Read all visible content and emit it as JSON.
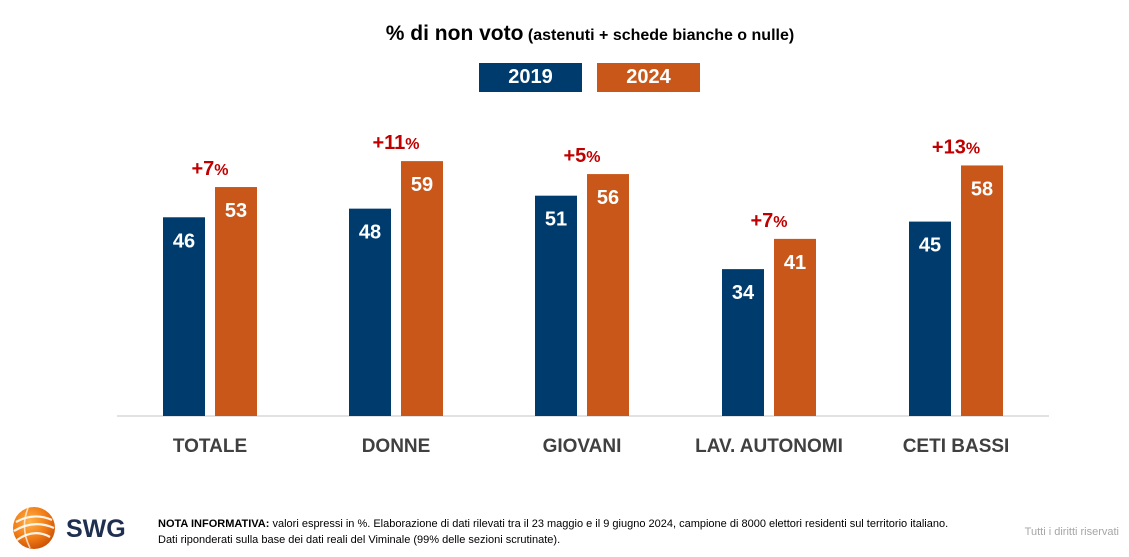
{
  "chart_data": {
    "type": "bar",
    "title": "% di non voto",
    "subtitle": "(astenuti + schede bianche o nulle)",
    "categories": [
      "TOTALE",
      "DONNE",
      "GIOVANI",
      "LAV. AUTONOMI",
      "CETI BASSI"
    ],
    "series": [
      {
        "name": "2019",
        "values": [
          46,
          48,
          51,
          34,
          45
        ],
        "color": "#003b6e"
      },
      {
        "name": "2024",
        "values": [
          53,
          59,
          56,
          41,
          58
        ],
        "color": "#c95719"
      }
    ],
    "differences": [
      {
        "value": "+7",
        "unit": "%"
      },
      {
        "value": "+11",
        "unit": "%"
      },
      {
        "value": "+5",
        "unit": "%"
      },
      {
        "value": "+7",
        "unit": "%"
      },
      {
        "value": "+13",
        "unit": "%"
      }
    ],
    "difference_color": "#c00000",
    "ylim": [
      0,
      65
    ],
    "legend_position": "top-center",
    "grid": false
  },
  "footer": {
    "note_label": "NOTA INFORMATIVA:",
    "note_text": " valori espressi in %. Elaborazione di dati rilevati tra il 23 maggio e il 9 giugno 2024, campione di 8000 elettori residenti sul territorio italiano. Dati riponderati sulla base dei dati reali del Viminale (99% delle sezioni scrutinate).",
    "rights": "Tutti i diritti riservati"
  },
  "logo": {
    "text": "SWG",
    "icon": "swg-globe-logo"
  }
}
